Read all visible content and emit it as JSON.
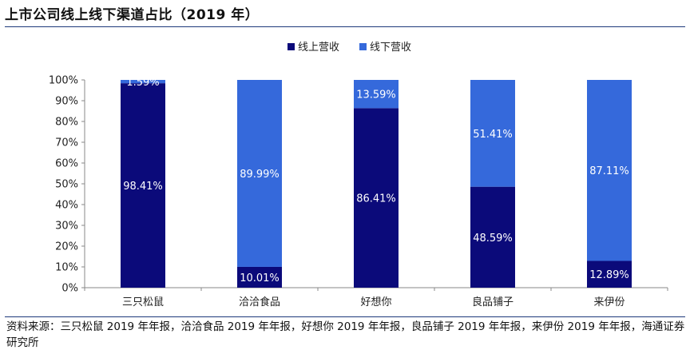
{
  "header": {
    "title": "上市公司线上线下渠道占比（2019 年）"
  },
  "source": {
    "text": "资料来源：三只松鼠 2019 年年报，洽洽食品 2019 年年报，好想你 2019 年年报，良品铺子 2019 年年报，来伊份 2019 年年报，海通证券研究所"
  },
  "colors": {
    "online": "#0b0a7a",
    "offline": "#3569db",
    "axis": "#888888"
  },
  "chart_data": {
    "type": "bar",
    "stacked": true,
    "title": "上市公司线上线下渠道占比（2019 年）",
    "categories": [
      "三只松鼠",
      "洽洽食品",
      "好想你",
      "良品铺子",
      "来伊份"
    ],
    "series": [
      {
        "name": "线上营收",
        "values": [
          98.41,
          10.01,
          86.41,
          48.59,
          12.89
        ],
        "labels": [
          "98.41%",
          "10.01%",
          "86.41%",
          "48.59%",
          "12.89%"
        ]
      },
      {
        "name": "线下营收",
        "values": [
          1.59,
          89.99,
          13.59,
          51.41,
          87.11
        ],
        "labels": [
          "1.59%",
          "89.99%",
          "13.59%",
          "51.41%",
          "87.11%"
        ]
      }
    ],
    "ylim": [
      0,
      100
    ],
    "yticks": [
      "0%",
      "10%",
      "20%",
      "30%",
      "40%",
      "50%",
      "60%",
      "70%",
      "80%",
      "90%",
      "100%"
    ],
    "xlabel": "",
    "ylabel": "",
    "legend": "top-center",
    "grid": false
  }
}
